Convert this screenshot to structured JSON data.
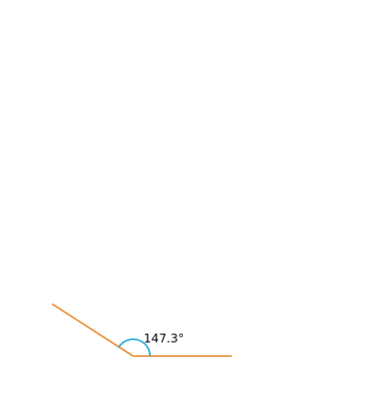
{
  "angle_label": "147.3°"
}
